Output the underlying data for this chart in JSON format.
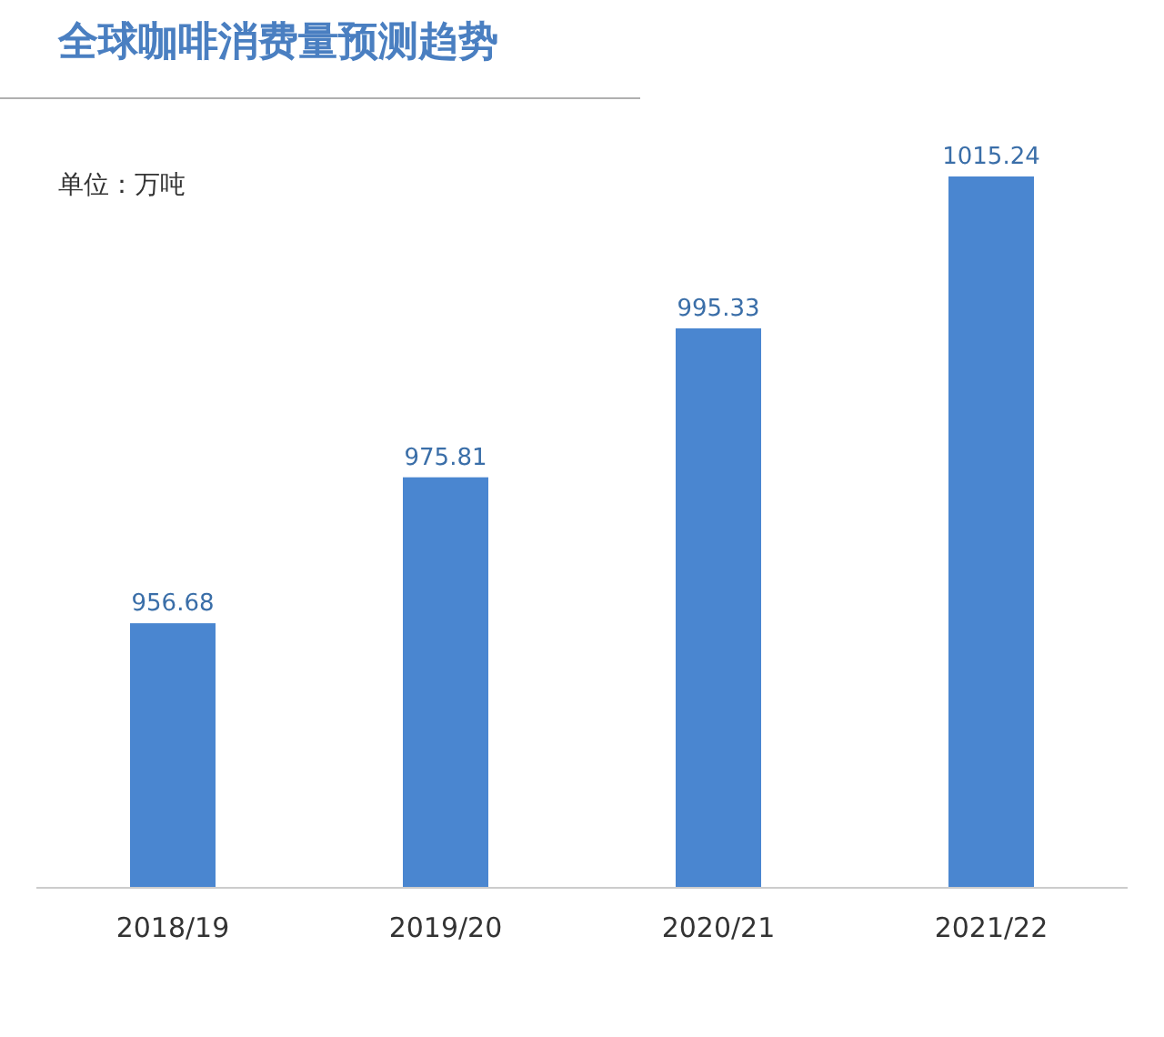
{
  "chart_data": {
    "type": "bar",
    "title": "全球咖啡消费量预测趋势",
    "annotations": [
      "单位：万吨"
    ],
    "categories": [
      "2018/19",
      "2019/20",
      "2020/21",
      "2021/22"
    ],
    "values": [
      956.68,
      975.81,
      995.33,
      1015.24
    ],
    "color": "#4a86d0",
    "ylim": [
      922,
      1015.24
    ],
    "tick_labels": "x",
    "data_labels": true
  }
}
